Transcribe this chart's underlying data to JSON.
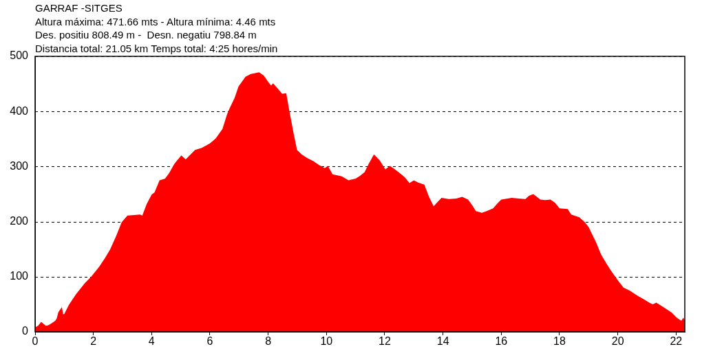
{
  "chart_data": {
    "type": "area",
    "title": "GARRAF -SITGES",
    "annotations": [
      "Altura máxima: 471.66 mts - Altura mínima: 4.46 mts",
      "Des. positiu 808.49 m -  Desn. negatiu 798.84 m",
      "Distancia total: 21.05 km Temps total: 4:25 hores/min"
    ],
    "x": [
      0,
      0.1,
      0.21,
      0.3,
      0.37,
      0.45,
      0.55,
      0.69,
      0.74,
      0.8,
      0.92,
      0.96,
      1.0,
      1.16,
      1.4,
      1.7,
      1.94,
      2.2,
      2.4,
      2.57,
      2.8,
      2.97,
      3.17,
      3.4,
      3.6,
      3.68,
      3.83,
      4.0,
      4.1,
      4.27,
      4.46,
      4.6,
      4.78,
      5.02,
      5.17,
      5.49,
      5.72,
      6.0,
      6.2,
      6.43,
      6.59,
      6.67,
      6.85,
      6.98,
      7.22,
      7.4,
      7.69,
      7.85,
      8.01,
      8.1,
      8.17,
      8.35,
      8.48,
      8.62,
      8.72,
      8.87,
      8.99,
      9.15,
      9.35,
      9.55,
      9.74,
      9.94,
      10.05,
      10.21,
      10.53,
      10.76,
      11.0,
      11.15,
      11.31,
      11.45,
      11.63,
      11.83,
      12.02,
      12.18,
      12.35,
      12.57,
      12.7,
      12.85,
      13.0,
      13.15,
      13.36,
      13.52,
      13.68,
      13.82,
      13.95,
      14.2,
      14.46,
      14.66,
      14.86,
      15.0,
      15.13,
      15.33,
      15.5,
      15.72,
      15.85,
      16.0,
      16.36,
      16.6,
      16.83,
      16.95,
      17.1,
      17.2,
      17.34,
      17.5,
      17.69,
      17.85,
      18.0,
      18.28,
      18.4,
      18.68,
      18.87,
      19.0,
      19.11,
      19.25,
      19.43,
      19.6,
      19.74,
      19.9,
      20.05,
      20.2,
      20.4,
      20.69,
      20.9,
      21.08,
      21.2,
      21.32,
      21.5,
      21.71,
      21.85,
      22.02,
      22.18,
      22.25,
      22.3
    ],
    "values": [
      8,
      11,
      18,
      14,
      11,
      12,
      15,
      20,
      24,
      36,
      45,
      32,
      32,
      49,
      68,
      88,
      101,
      118,
      134,
      149,
      176,
      199,
      211,
      212,
      213,
      211,
      232,
      249,
      253,
      275,
      278,
      288,
      305,
      320,
      313,
      330,
      334,
      342,
      351,
      368,
      395,
      405,
      425,
      445,
      463,
      468,
      471,
      465,
      453,
      447,
      451,
      440,
      432,
      433,
      403,
      361,
      330,
      322,
      315,
      310,
      303,
      297,
      301,
      286,
      282,
      275,
      278,
      283,
      290,
      305,
      322,
      311,
      295,
      301,
      295,
      286,
      280,
      270,
      275,
      271,
      267,
      245,
      228,
      236,
      243,
      241,
      242,
      245,
      240,
      230,
      219,
      216,
      219,
      224,
      232,
      240,
      243,
      242,
      241,
      247,
      250,
      246,
      240,
      239,
      240,
      234,
      224,
      223,
      213,
      208,
      199,
      190,
      178,
      163,
      140,
      125,
      113,
      101,
      90,
      80,
      75,
      65,
      59,
      53,
      50,
      53,
      47,
      40,
      35,
      26,
      20,
      26,
      20
    ],
    "color": "#ff0000",
    "xlim": [
      0,
      22.3
    ],
    "xticks": [
      0,
      2,
      4,
      6,
      8,
      10,
      12,
      14,
      16,
      18,
      20,
      22
    ],
    "ylim": [
      0,
      500
    ],
    "yticks": [
      0,
      100,
      200,
      300,
      400,
      500
    ],
    "grid": "y"
  }
}
